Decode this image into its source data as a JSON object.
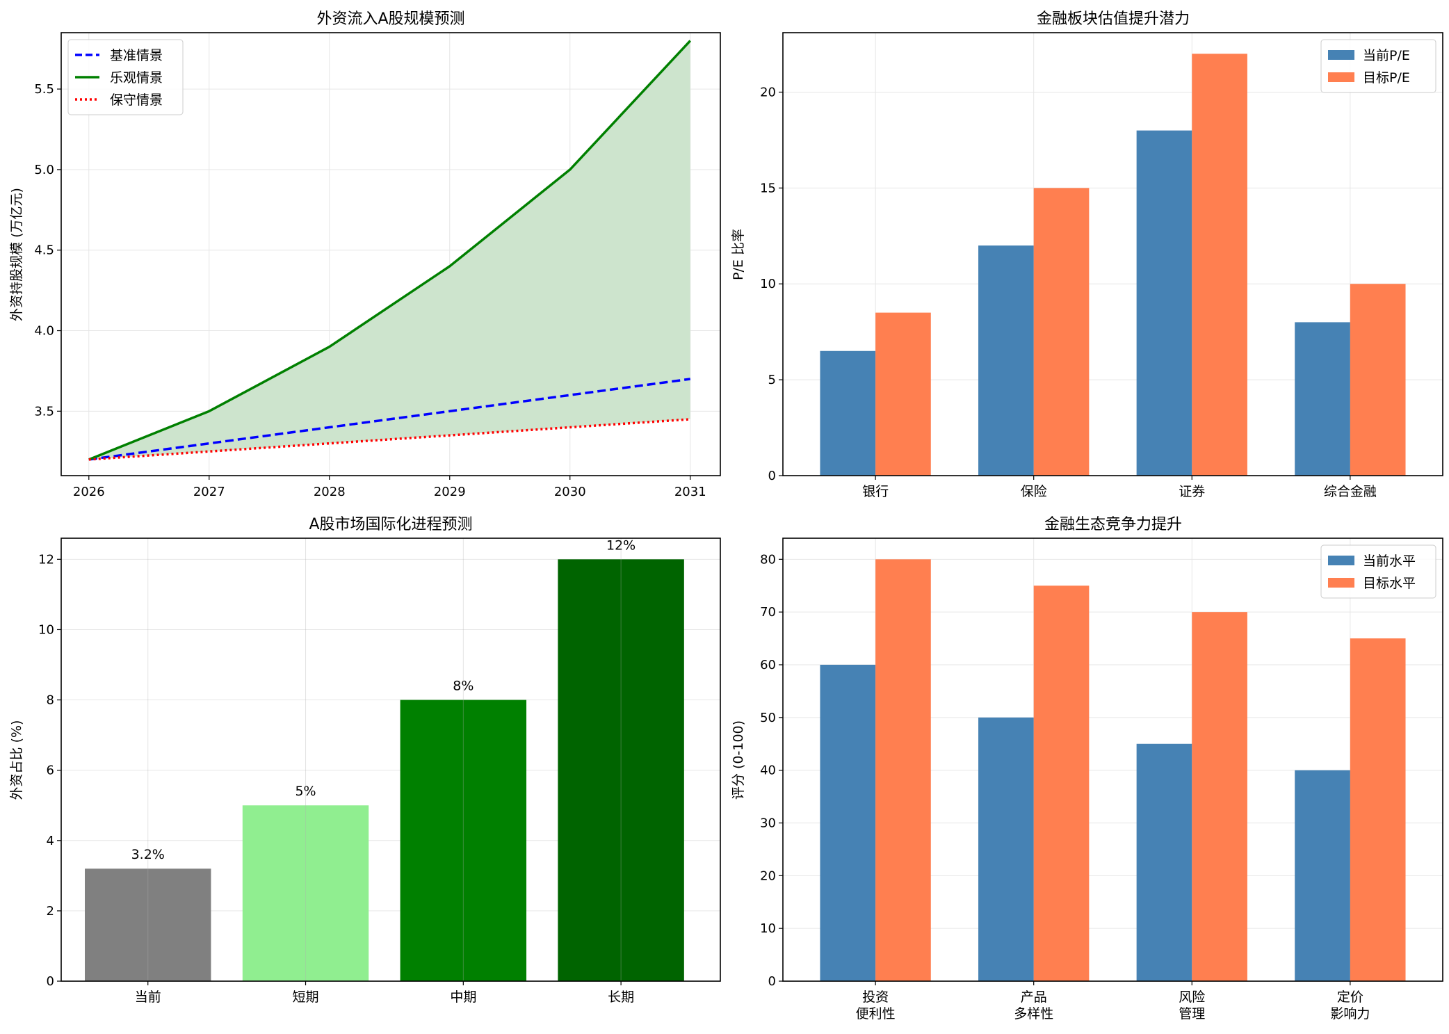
{
  "chart_data": [
    {
      "type": "line",
      "title": "外资流入A股规模预测",
      "xlabel": "",
      "ylabel": "外资持股规模 (万亿元)",
      "x": [
        2026,
        2027,
        2028,
        2029,
        2030,
        2031
      ],
      "xticks": [
        "2026",
        "2027",
        "2028",
        "2029",
        "2030",
        "2031"
      ],
      "ylim": [
        3.1,
        5.85
      ],
      "yticks": [
        "3.5",
        "4.0",
        "4.5",
        "5.0",
        "5.5"
      ],
      "grid": true,
      "legend_position": "top-left",
      "fill_between": [
        "乐观情景",
        "保守情景"
      ],
      "fill_color": "#cde4cd",
      "series": [
        {
          "name": "基准情景",
          "style": "dashed",
          "color": "#0000ff",
          "values": [
            3.2,
            3.3,
            3.4,
            3.5,
            3.6,
            3.7
          ]
        },
        {
          "name": "乐观情景",
          "style": "solid",
          "color": "#008000",
          "values": [
            3.2,
            3.5,
            3.9,
            4.4,
            5.0,
            5.8
          ]
        },
        {
          "name": "保守情景",
          "style": "dotted",
          "color": "#ff0000",
          "values": [
            3.2,
            3.25,
            3.3,
            3.35,
            3.4,
            3.45
          ]
        }
      ]
    },
    {
      "type": "bar",
      "title": "金融板块估值提升潜力",
      "xlabel": "",
      "ylabel": "P/E 比率",
      "categories": [
        "银行",
        "保险",
        "证券",
        "综合金融"
      ],
      "ylim": [
        0,
        23.1
      ],
      "yticks": [
        "0",
        "5",
        "10",
        "15",
        "20"
      ],
      "grid": true,
      "legend_position": "top-right",
      "series": [
        {
          "name": "当前P/E",
          "color": "#4682b4",
          "values": [
            6.5,
            12,
            18,
            8
          ]
        },
        {
          "name": "目标P/E",
          "color": "#ff7f50",
          "values": [
            8.5,
            15,
            22,
            10
          ]
        }
      ]
    },
    {
      "type": "bar",
      "title": "A股市场国际化进程预测",
      "xlabel": "",
      "ylabel": "外资占比 (%)",
      "categories": [
        "当前",
        "短期",
        "中期",
        "长期"
      ],
      "values": [
        3.2,
        5,
        8,
        12
      ],
      "data_labels": [
        "3.2%",
        "5%",
        "8%",
        "12%"
      ],
      "colors": [
        "#808080",
        "#90ee90",
        "#008000",
        "#006400"
      ],
      "ylim": [
        0,
        12.6
      ],
      "yticks": [
        "0",
        "2",
        "4",
        "6",
        "8",
        "10",
        "12"
      ],
      "grid": true
    },
    {
      "type": "bar",
      "title": "金融生态竞争力提升",
      "xlabel": "",
      "ylabel": "评分 (0-100)",
      "categories": [
        [
          "投资",
          "便利性"
        ],
        [
          "产品",
          "多样性"
        ],
        [
          "风险",
          "管理"
        ],
        [
          "定价",
          "影响力"
        ]
      ],
      "ylim": [
        0,
        84
      ],
      "yticks": [
        "0",
        "10",
        "20",
        "30",
        "40",
        "50",
        "60",
        "70",
        "80"
      ],
      "grid": true,
      "legend_position": "top-right",
      "series": [
        {
          "name": "当前水平",
          "color": "#4682b4",
          "values": [
            60,
            50,
            45,
            40
          ]
        },
        {
          "name": "目标水平",
          "color": "#ff7f50",
          "values": [
            80,
            75,
            70,
            65
          ]
        }
      ]
    }
  ]
}
